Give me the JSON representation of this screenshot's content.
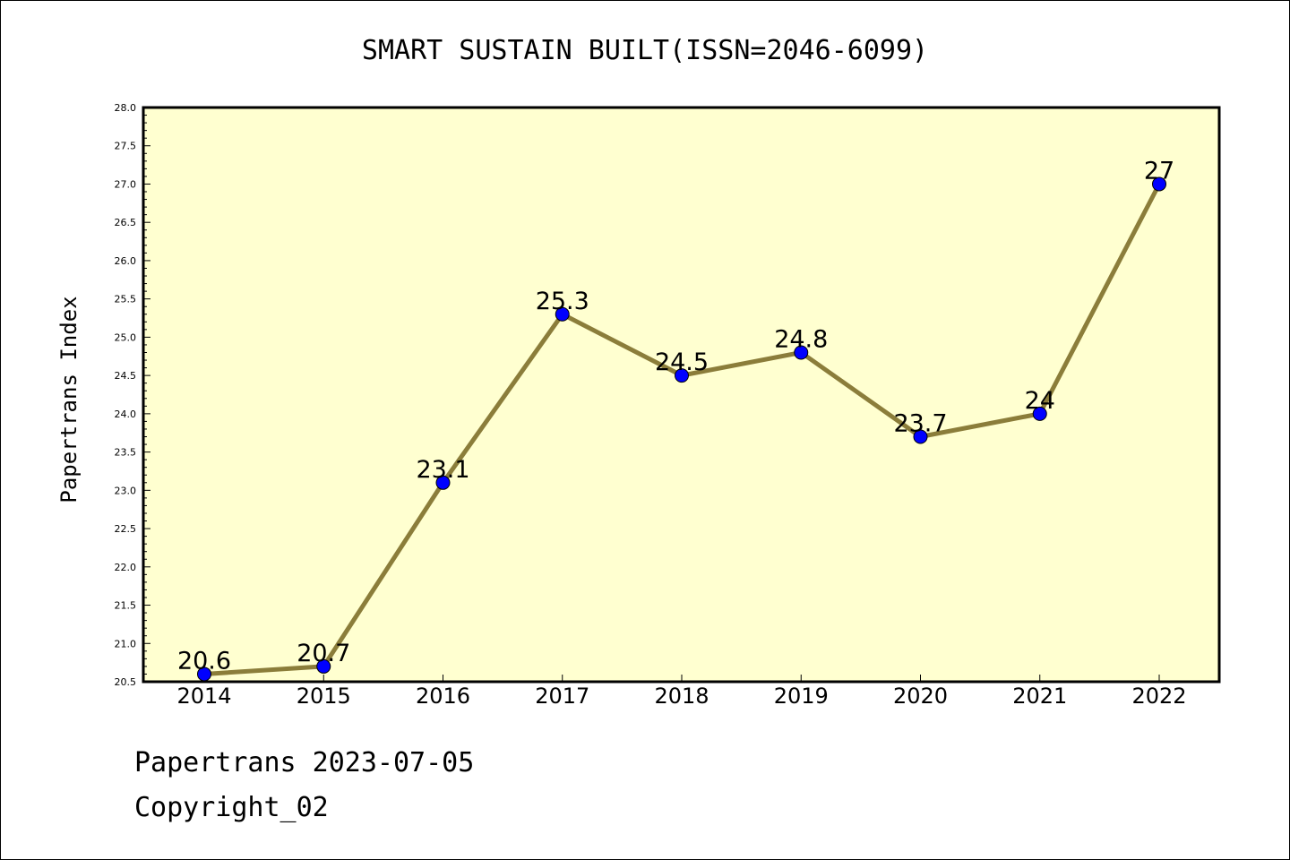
{
  "chart_data": {
    "type": "line",
    "title": "SMART SUSTAIN BUILT(ISSN=2046-6099)",
    "xlabel": "",
    "ylabel": "Papertrans Index",
    "categories": [
      "2014",
      "2015",
      "2016",
      "2017",
      "2018",
      "2019",
      "2020",
      "2021",
      "2022"
    ],
    "series": [
      {
        "values": [
          20.6,
          20.7,
          23.1,
          25.3,
          24.5,
          24.8,
          23.7,
          24.0,
          27.0
        ],
        "data_labels": [
          "20.6",
          "20.7",
          "23.1",
          "25.3",
          "24.5",
          "24.8",
          "23.7",
          "24",
          "27"
        ]
      }
    ],
    "ylim": [
      20.5,
      28.0
    ],
    "yticks": [
      "20.5",
      "21.0",
      "21.5",
      "22.0",
      "22.5",
      "23.0",
      "23.5",
      "24.0",
      "24.5",
      "25.0",
      "25.5",
      "26.0",
      "26.5",
      "27.0",
      "27.5",
      "28.0"
    ],
    "grid": false,
    "legend": "none",
    "colors": {
      "plot_background": "#ffffd0",
      "line": "#8b7d3a",
      "marker": "#0000ff"
    }
  },
  "footer": {
    "line1": "Papertrans 2023-07-05",
    "line2": "Copyright_02"
  }
}
